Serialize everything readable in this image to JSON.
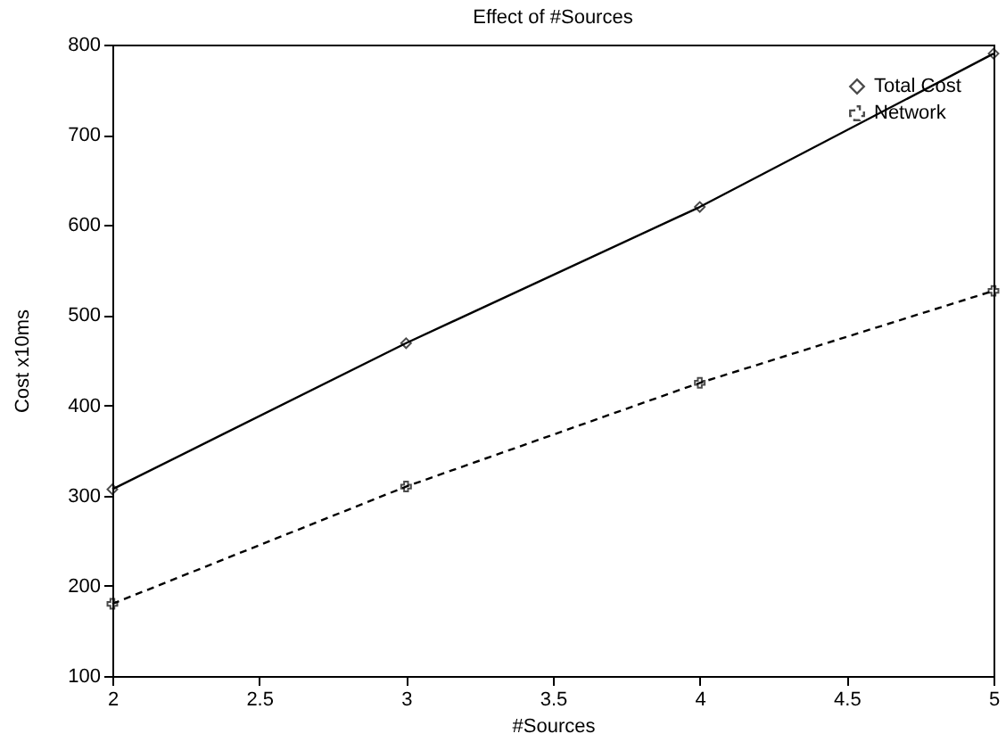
{
  "chart_data": {
    "type": "line",
    "title": "Effect of #Sources",
    "xlabel": "#Sources",
    "ylabel": "Cost x10ms",
    "x": [
      2,
      3,
      4,
      5
    ],
    "series": [
      {
        "name": "Total Cost",
        "color": "#000000",
        "values": [
          307,
          469,
          620,
          790
        ],
        "marker": "diamond",
        "line_style": "solid"
      },
      {
        "name": "Network",
        "color": "#000000",
        "values": [
          180,
          310,
          425,
          527
        ],
        "marker": "cross",
        "line_style": "dashed"
      }
    ],
    "xlim": [
      2,
      5
    ],
    "xticks": [
      2,
      2.5,
      3,
      3.5,
      4,
      4.5,
      5
    ],
    "ylim": [
      100,
      800
    ],
    "yticks": [
      100,
      200,
      300,
      400,
      500,
      600,
      700,
      800
    ],
    "grid": false,
    "legend": "top right"
  }
}
